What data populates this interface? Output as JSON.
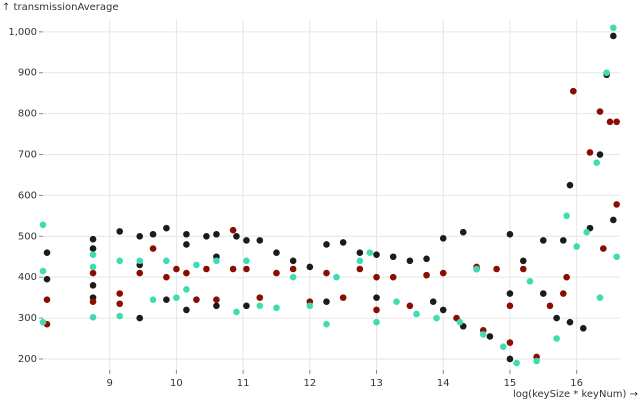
{
  "chart_data": {
    "type": "scatter",
    "y_label": "↑ transmissionAverage",
    "x_label": "log(keySize * keyNum) →",
    "xlim": [
      8,
      16.65
    ],
    "ylim": [
      173,
      1029
    ],
    "xticks": [
      9,
      10,
      11,
      12,
      13,
      14,
      15,
      16
    ],
    "yticks": [
      200,
      300,
      400,
      500,
      600,
      700,
      800,
      {
        "value": 900,
        "label": "900"
      },
      {
        "value": 1000,
        "label": "1,000"
      }
    ],
    "grid": true,
    "series": [
      {
        "color": "#1b1b1b",
        "x": [
          8.06,
          8.06,
          8.75,
          8.75,
          8.75,
          8.75,
          9.15,
          9.45,
          9.45,
          9.45,
          9.65,
          9.85,
          9.85,
          10.15,
          10.15,
          10.15,
          10.45,
          10.6,
          10.6,
          10.6,
          10.9,
          11.05,
          11.05,
          11.25,
          11.5,
          11.75,
          12.0,
          12.25,
          12.25,
          12.5,
          12.75,
          13.0,
          13.0,
          13.25,
          13.5,
          13.75,
          13.85,
          14.0,
          14.0,
          14.3,
          14.3,
          14.5,
          14.7,
          15.0,
          15.0,
          15.0,
          15.2,
          15.5,
          15.5,
          15.7,
          15.8,
          15.9,
          15.9,
          16.1,
          16.2,
          16.35,
          16.45,
          16.55,
          16.55
        ],
        "values": [
          460,
          395,
          493,
          470,
          380,
          350,
          512,
          500,
          300,
          430,
          505,
          520,
          345,
          505,
          480,
          320,
          500,
          505,
          450,
          330,
          500,
          490,
          330,
          490,
          460,
          440,
          425,
          480,
          340,
          485,
          460,
          455,
          350,
          450,
          440,
          445,
          340,
          495,
          320,
          510,
          280,
          420,
          255,
          505,
          360,
          200,
          440,
          490,
          360,
          300,
          490,
          625,
          290,
          275,
          520,
          700,
          895,
          990,
          540
        ]
      },
      {
        "color": "#8b0d02",
        "x": [
          8.06,
          8.06,
          8.75,
          8.75,
          9.15,
          9.15,
          9.45,
          9.65,
          9.85,
          10.0,
          10.15,
          10.3,
          10.45,
          10.6,
          10.85,
          10.85,
          11.05,
          11.25,
          11.5,
          11.75,
          12.0,
          12.25,
          12.5,
          12.75,
          13.0,
          13.0,
          13.25,
          13.5,
          13.75,
          14.0,
          14.2,
          14.5,
          14.6,
          14.8,
          15.0,
          15.0,
          15.2,
          15.4,
          15.6,
          15.8,
          15.85,
          15.95,
          16.2,
          16.35,
          16.4,
          16.5,
          16.6,
          16.6
        ],
        "values": [
          345,
          285,
          410,
          340,
          360,
          335,
          410,
          470,
          400,
          420,
          410,
          345,
          420,
          345,
          515,
          420,
          420,
          350,
          410,
          420,
          340,
          410,
          350,
          420,
          400,
          320,
          400,
          330,
          405,
          410,
          300,
          425,
          270,
          420,
          240,
          330,
          420,
          205,
          330,
          360,
          400,
          855,
          705,
          805,
          470,
          780,
          780,
          578
        ]
      },
      {
        "color": "#3fdcb2",
        "x": [
          8.0,
          8.0,
          8.0,
          8.75,
          8.75,
          8.75,
          9.15,
          9.15,
          9.45,
          9.65,
          9.85,
          10.0,
          10.15,
          10.3,
          10.6,
          10.9,
          11.05,
          11.25,
          11.5,
          11.75,
          12.0,
          12.25,
          12.4,
          12.75,
          12.9,
          13.0,
          13.3,
          13.6,
          13.9,
          14.25,
          14.5,
          14.6,
          14.9,
          15.1,
          15.3,
          15.4,
          15.7,
          15.85,
          16.0,
          16.15,
          16.3,
          16.35,
          16.45,
          16.55,
          16.6
        ],
        "values": [
          528,
          415,
          290,
          455,
          425,
          302,
          440,
          305,
          440,
          345,
          440,
          350,
          370,
          430,
          440,
          315,
          440,
          330,
          325,
          400,
          330,
          285,
          400,
          440,
          460,
          290,
          340,
          310,
          300,
          290,
          420,
          260,
          230,
          190,
          390,
          195,
          250,
          550,
          475,
          510,
          680,
          350,
          900,
          1010,
          450
        ]
      }
    ]
  }
}
